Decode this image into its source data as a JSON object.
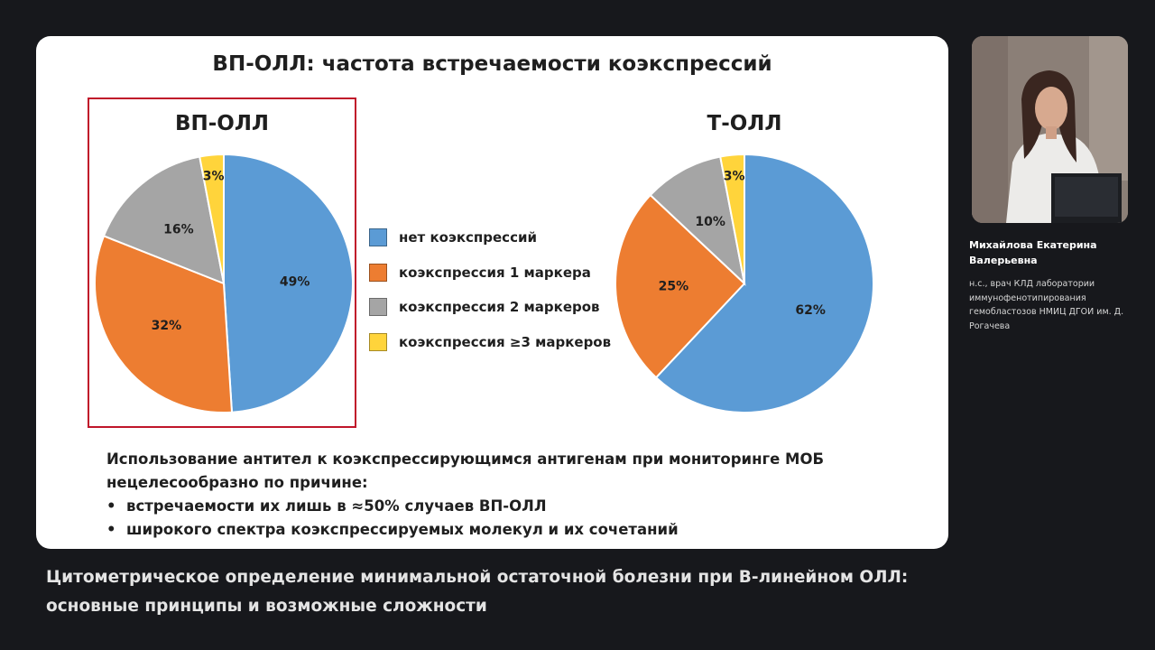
{
  "slide": {
    "title": "ВП-ОЛЛ: частота встречаемости коэкспрессий"
  },
  "chart_data": [
    {
      "type": "pie",
      "title": "ВП-ОЛЛ",
      "categories": [
        "нет коэкспрессий",
        "коэкспрессия 1 маркера",
        "коэкспрессия 2 маркеров",
        "коэкспрессия ≥3 маркеров"
      ],
      "values": [
        49,
        32,
        16,
        3
      ],
      "data_labels": [
        "49%",
        "32%",
        "16%",
        "3%"
      ],
      "colors": [
        "#5b9bd5",
        "#ed7d31",
        "#a5a5a5",
        "#ffd43b"
      ],
      "highlighted": true,
      "legend": "right"
    },
    {
      "type": "pie",
      "title": "Т-ОЛЛ",
      "categories": [
        "нет коэкспрессий",
        "коэкспрессия 1 маркера",
        "коэкспрессия 2 маркеров",
        "коэкспрессия ≥3 маркеров"
      ],
      "values": [
        62,
        25,
        10,
        3
      ],
      "data_labels": [
        "62%",
        "25%",
        "10%",
        "3%"
      ],
      "colors": [
        "#5b9bd5",
        "#ed7d31",
        "#a5a5a5",
        "#ffd43b"
      ],
      "highlighted": false
    }
  ],
  "legend": [
    {
      "label": "нет коэкспрессий",
      "color": "#5b9bd5"
    },
    {
      "label": "коэкспрессия 1 маркера",
      "color": "#ed7d31"
    },
    {
      "label": "коэкспрессия 2 маркеров",
      "color": "#a5a5a5"
    },
    {
      "label": "коэкспрессия ≥3 маркеров",
      "color": "#ffd43b"
    }
  ],
  "notes": {
    "intro_line1": "Использование антител к коэкспрессирующимся антигенам при мониторинге МОБ",
    "intro_line2": "нецелесообразно по причине:",
    "bullet_mark": "•",
    "bullets": [
      "встречаемости их лишь в ≈50% случаев ВП-ОЛЛ",
      "широкого спектра коэкспрессируемых молекул и их сочетаний"
    ]
  },
  "speaker": {
    "name": "Михайлова Екатерина Валерьевна",
    "role": "н.с., врач КЛД лаборатории иммунофенотипирования гемобластозов НМИЦ ДГОИ им. Д. Рогачева"
  },
  "talk": {
    "title": "Цитометрическое определение минимальной остаточной болезни при В-линейном ОЛЛ: основные принципы и возможные сложности"
  },
  "colors": {
    "background": "#17181c",
    "frame": "#c0152a"
  }
}
